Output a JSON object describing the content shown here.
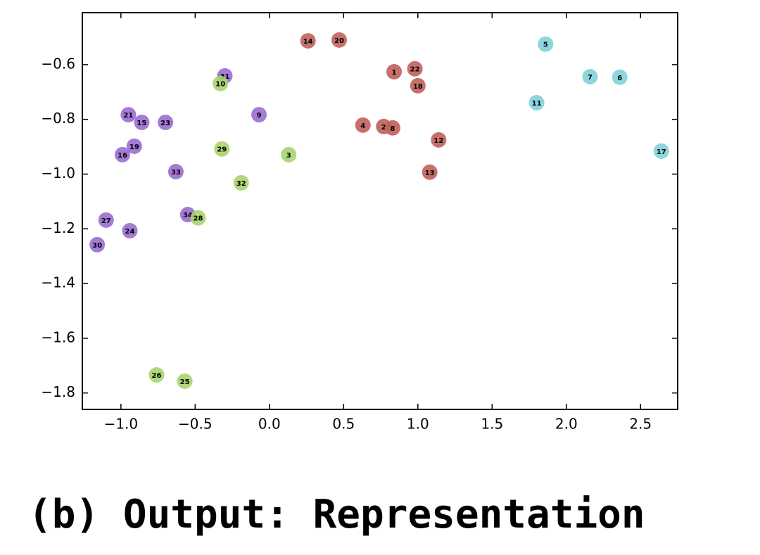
{
  "chart_data": {
    "type": "scatter",
    "caption": "(b) Output: Representation",
    "xlim": [
      -1.26,
      2.75
    ],
    "ylim": [
      -1.86,
      -0.41
    ],
    "xticks": [
      {
        "value": -1,
        "label": "−1.0"
      },
      {
        "value": -0.5,
        "label": "−0.5"
      },
      {
        "value": 0,
        "label": "0.0"
      },
      0.5,
      {
        "value": 1,
        "label": "1.0"
      },
      1.5,
      {
        "value": 2,
        "label": "2.0"
      },
      2.5
    ],
    "yticks": [
      {
        "value": -0.6,
        "label": "−0.6"
      },
      {
        "value": -0.8,
        "label": "−0.8"
      },
      {
        "value": -1,
        "label": "−1.0"
      },
      {
        "value": -1.2,
        "label": "−1.2"
      },
      {
        "value": -1.4,
        "label": "−1.4"
      },
      {
        "value": -1.6,
        "label": "−1.6"
      },
      {
        "value": -1.8,
        "label": "−1.8"
      }
    ],
    "grid": false,
    "series": [
      {
        "color": "#9a6dd0",
        "labels": [
          "9",
          "15",
          "16",
          "19",
          "21",
          "23",
          "24",
          "27",
          "30",
          "31",
          "33",
          "34"
        ],
        "x": [
          -0.07,
          -0.86,
          -0.99,
          -0.91,
          -0.95,
          -0.7,
          -0.94,
          -1.1,
          -1.16,
          -0.3,
          -0.63,
          -0.55
        ],
        "values": [
          -0.783,
          -0.811,
          -0.929,
          -0.898,
          -0.783,
          -0.811,
          -1.207,
          -1.168,
          -1.258,
          -0.641,
          -0.991,
          -1.148
        ]
      },
      {
        "color": "#a8d46e",
        "labels": [
          "3",
          "10",
          "25",
          "26",
          "28",
          "29",
          "32"
        ],
        "x": [
          0.13,
          -0.33,
          -0.57,
          -0.76,
          -0.48,
          -0.32,
          -0.19
        ],
        "values": [
          -0.929,
          -0.669,
          -1.757,
          -1.734,
          -1.16,
          -0.908,
          -1.032
        ]
      },
      {
        "color": "#c0615b",
        "labels": [
          "1",
          "2",
          "4",
          "8",
          "12",
          "13",
          "14",
          "18",
          "20",
          "22"
        ],
        "x": [
          0.84,
          0.77,
          0.63,
          0.83,
          1.14,
          1.08,
          0.26,
          1.0,
          0.47,
          0.98
        ],
        "values": [
          -0.626,
          -0.826,
          -0.821,
          -0.831,
          -0.875,
          -0.993,
          -0.513,
          -0.677,
          -0.51,
          -0.615
        ]
      },
      {
        "color": "#7fd2d8",
        "labels": [
          "5",
          "6",
          "7",
          "11",
          "17"
        ],
        "x": [
          1.86,
          2.36,
          2.16,
          1.8,
          2.64
        ],
        "values": [
          -0.525,
          -0.646,
          -0.644,
          -0.739,
          -0.916
        ]
      }
    ]
  }
}
